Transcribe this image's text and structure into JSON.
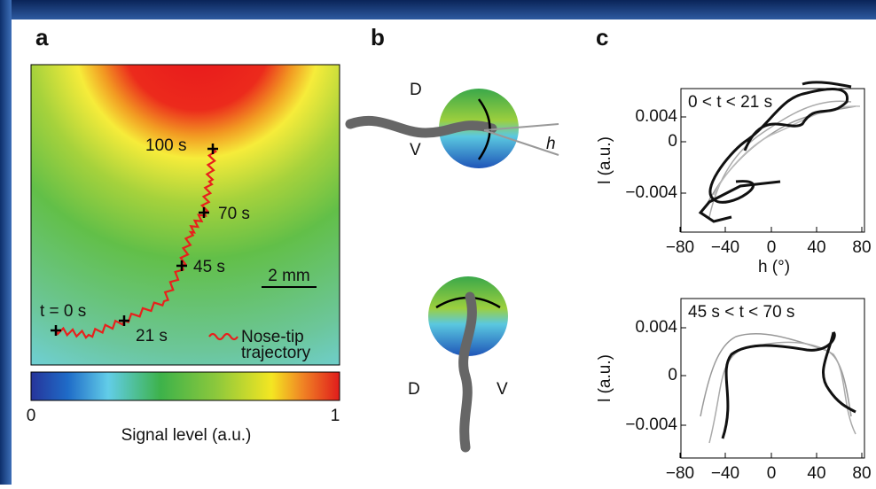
{
  "panel_a": {
    "label": "a",
    "annotations": [
      "t = 0 s",
      "21 s",
      "45 s",
      "70 s",
      "100 s"
    ],
    "scale_bar": "2 mm",
    "legend": [
      "Nose-tip",
      "trajectory"
    ],
    "colorbar": {
      "min": "0",
      "max": "1",
      "label": "Signal level (a.u.)"
    }
  },
  "panel_b": {
    "label": "b",
    "top": {
      "dorsal": "D",
      "ventral": "V",
      "angle": "h"
    },
    "bottom": {
      "dorsal": "D",
      "ventral": "V"
    }
  },
  "panel_c": {
    "label": "c",
    "plots": [
      {
        "title": "0 < t < 21 s",
        "ylabel": "l (a.u.)",
        "xlabel": "h (°)",
        "yticks": [
          "0.004",
          "0",
          "−0.004"
        ],
        "xticks": [
          "−80",
          "−40",
          "0",
          "40",
          "80"
        ]
      },
      {
        "title": "45 s < t < 70 s",
        "ylabel": "l (a.u.)",
        "yticks": [
          "0.004",
          "0",
          "−0.004"
        ],
        "xticks": [
          "−80",
          "−40",
          "0",
          "40",
          "80"
        ]
      }
    ]
  }
}
